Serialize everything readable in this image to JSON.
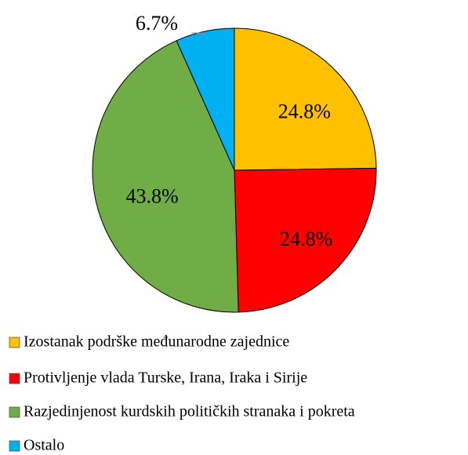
{
  "chart_data": {
    "type": "pie",
    "categories": [
      "Izostanak podrške međunarodne zajednice",
      "Protivljenje vlada Turske, Irana, Iraka i Sirije",
      "Razjedinjenost kurdskih političkih stranaka i pokreta",
      "Ostalo"
    ],
    "values": [
      24.8,
      24.8,
      43.8,
      6.7
    ],
    "value_labels": [
      "24.8%",
      "24.8%",
      "43.8%",
      "6.7%"
    ],
    "colors": [
      "#FFC000",
      "#FF0000",
      "#70AD47",
      "#00B0F0"
    ]
  }
}
